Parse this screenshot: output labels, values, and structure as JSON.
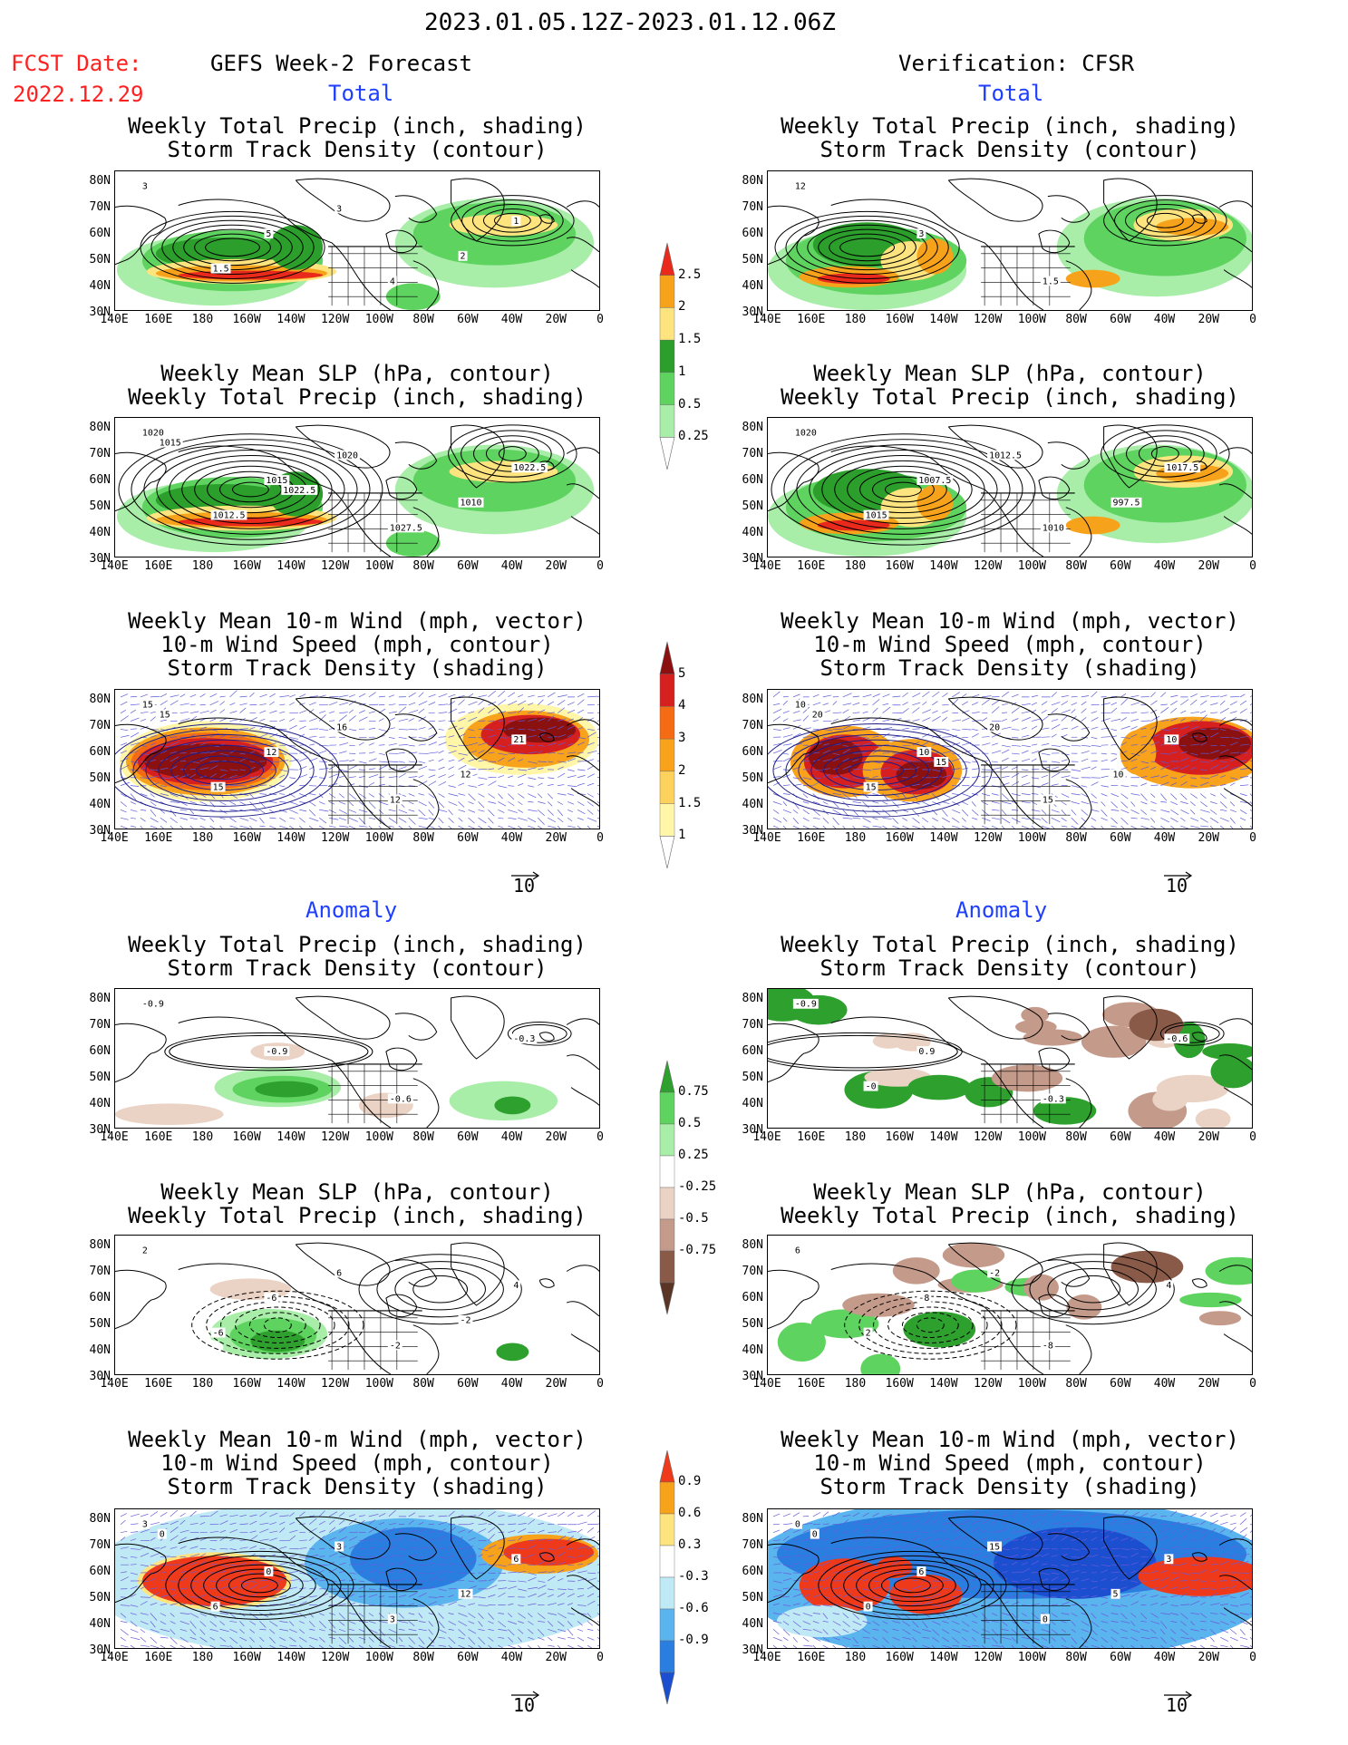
{
  "header": {
    "date_range": "2023.01.05.12Z-2023.01.12.06Z",
    "fcst_label": "FCST Date:",
    "fcst_date": "2022.12.29",
    "left_title": "GEFS Week-2 Forecast",
    "right_title": "Verification: CFSR",
    "total_label": "Total",
    "anomaly_label": "Anomaly"
  },
  "panel_titles": {
    "precip_storm": [
      "Weekly Total Precip (inch, shading)",
      "Storm Track Density (contour)"
    ],
    "slp_precip": [
      "Weekly Mean SLP (hPa, contour)",
      "Weekly Total Precip (inch, shading)"
    ],
    "wind_storm": [
      "Weekly Mean 10-m Wind (mph, vector)",
      "10-m Wind Speed (mph, contour)",
      "Storm Track Density (shading)"
    ]
  },
  "axes": {
    "lat_ticks": [
      "80N",
      "70N",
      "60N",
      "50N",
      "40N",
      "30N"
    ],
    "lon_ticks": [
      "140E",
      "160E",
      "180",
      "160W",
      "140W",
      "120W",
      "100W",
      "80W",
      "60W",
      "40W",
      "20W",
      "0"
    ]
  },
  "vector_ref": "10",
  "colorbars": {
    "precip_total": {
      "labels": [
        "2.5",
        "2",
        "1.5",
        "1",
        "0.5",
        "0.25"
      ],
      "colors": [
        "#e8291c",
        "#f7a21b",
        "#fde47f",
        "#2c9e2c",
        "#5fd35f",
        "#a8eda8",
        "#ffffff"
      ]
    },
    "storm_total": {
      "labels": [
        "5",
        "4",
        "3",
        "2",
        "1.5",
        "1"
      ],
      "colors": [
        "#8b1010",
        "#d62020",
        "#f56b13",
        "#f9a21b",
        "#fcd15c",
        "#fff6a8",
        "#ffffff"
      ]
    },
    "precip_anom": {
      "labels": [
        "0.75",
        "0.5",
        "0.25",
        "-0.25",
        "-0.5",
        "-0.75"
      ],
      "colors": [
        "#2ea02e",
        "#5fd35f",
        "#a8eda8",
        "#ffffff",
        "#ead2c4",
        "#c49a8a",
        "#8a5a48",
        "#5a3526"
      ]
    },
    "storm_anom": {
      "labels": [
        "0.9",
        "0.6",
        "0.3",
        "-0.3",
        "-0.6",
        "-0.9"
      ],
      "colors": [
        "#ee3a1a",
        "#f7a21b",
        "#fde47f",
        "#ffffff",
        "#bfe9f5",
        "#5ab4ee",
        "#2a7ee0",
        "#1c4fd0"
      ]
    }
  },
  "contour_labels": {
    "t_precip_left": [
      "3",
      "5",
      "4",
      "1",
      "1.5",
      "3",
      "2"
    ],
    "t_precip_right": [
      "12",
      "3",
      "1.5"
    ],
    "t_slp_left": [
      "1020",
      "1015",
      "1027.5",
      "1022.5",
      "1012.5",
      "1020",
      "1010",
      "1015",
      "1022.5"
    ],
    "t_slp_right": [
      "1020",
      "1007.5",
      "1010",
      "1017.5",
      "1015",
      "1012.5",
      "997.5"
    ],
    "t_wind_left": [
      "15",
      "12",
      "12",
      "21",
      "15",
      "16",
      "12",
      "15"
    ],
    "t_wind_right": [
      "10",
      "10",
      "15",
      "10",
      "15",
      "20",
      "10",
      "20",
      "15"
    ],
    "a_precip_left": [
      "-0.9",
      "-0.9",
      "-0.6",
      "-0.3"
    ],
    "a_precip_right": [
      "-0.9",
      "0.9",
      "-0.3",
      "-0.6",
      "-0"
    ],
    "a_slp_left": [
      "2",
      "-6",
      "-2",
      "4",
      "-6",
      "6",
      "-2"
    ],
    "a_slp_right": [
      "6",
      "-8",
      "-8",
      "4",
      "2",
      "-2"
    ],
    "a_wind_left": [
      "3",
      "0",
      "3",
      "6",
      "6",
      "3",
      "12",
      "0"
    ],
    "a_wind_right": [
      "0",
      "6",
      "0",
      "3",
      "0",
      "15",
      "5",
      "0"
    ]
  }
}
